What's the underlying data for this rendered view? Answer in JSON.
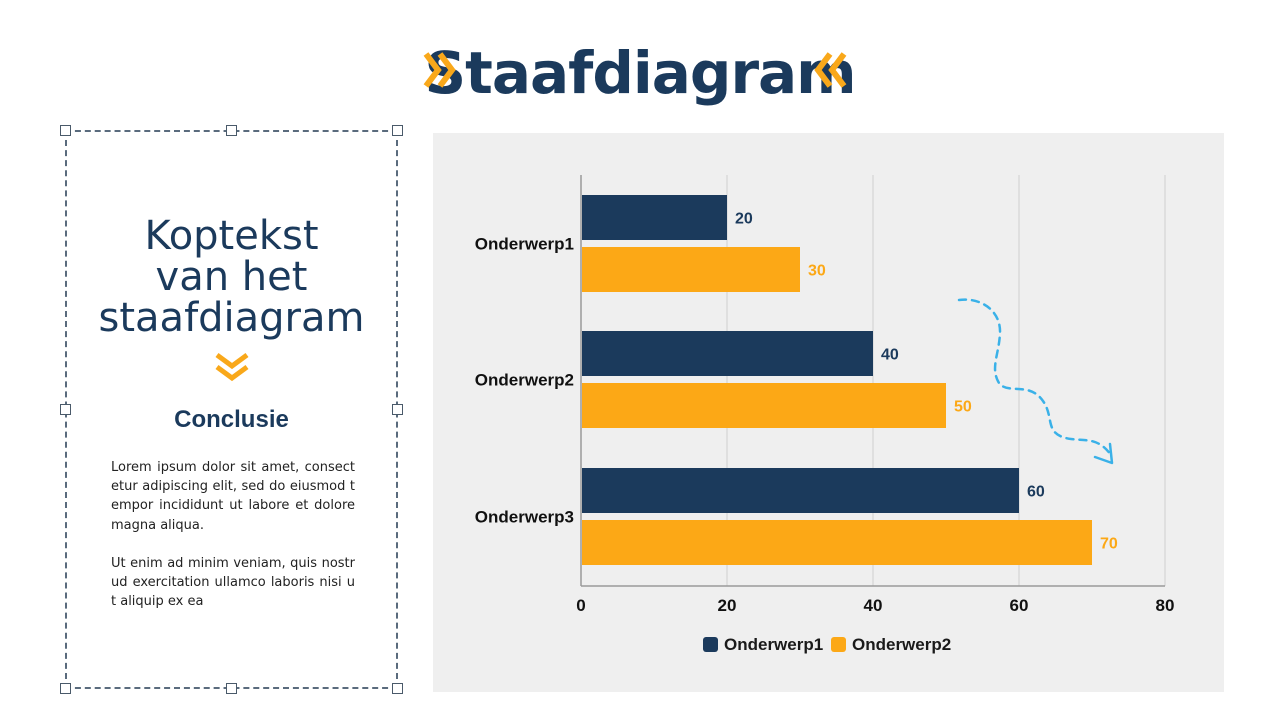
{
  "header": {
    "title": "Staafdiagram",
    "accent_color": "#f9a81a",
    "title_color": "#1b3a5c"
  },
  "textbox": {
    "heading_lines": [
      "Koptekst",
      "van het",
      "staafdiagram"
    ],
    "subheading": "Conclusie",
    "paragraphs": [
      "Lorem ipsum dolor sit amet, consectetur adipiscing elit, sed do eiusmod tempor incididunt ut labore et dolore magna aliqua.",
      "Ut enim ad minim veniam, quis nostrud exercitation ullamco laboris nisi ut aliquip ex ea"
    ]
  },
  "chart_data": {
    "type": "bar",
    "orientation": "horizontal",
    "title": "",
    "xlabel": "",
    "ylabel": "",
    "categories": [
      "Onderwerp1",
      "Onderwerp2",
      "Onderwerp3"
    ],
    "series": [
      {
        "name": "Onderwerp1",
        "color": "#1b3a5c",
        "values": [
          20,
          40,
          60
        ]
      },
      {
        "name": "Onderwerp2",
        "color": "#fca816",
        "values": [
          30,
          50,
          70
        ]
      }
    ],
    "xlim": [
      0,
      80
    ],
    "xticks": [
      0,
      20,
      40,
      60,
      80
    ],
    "grid": true,
    "legend": "bottom",
    "data_labels": true,
    "annotation": "dashed-arrow"
  }
}
